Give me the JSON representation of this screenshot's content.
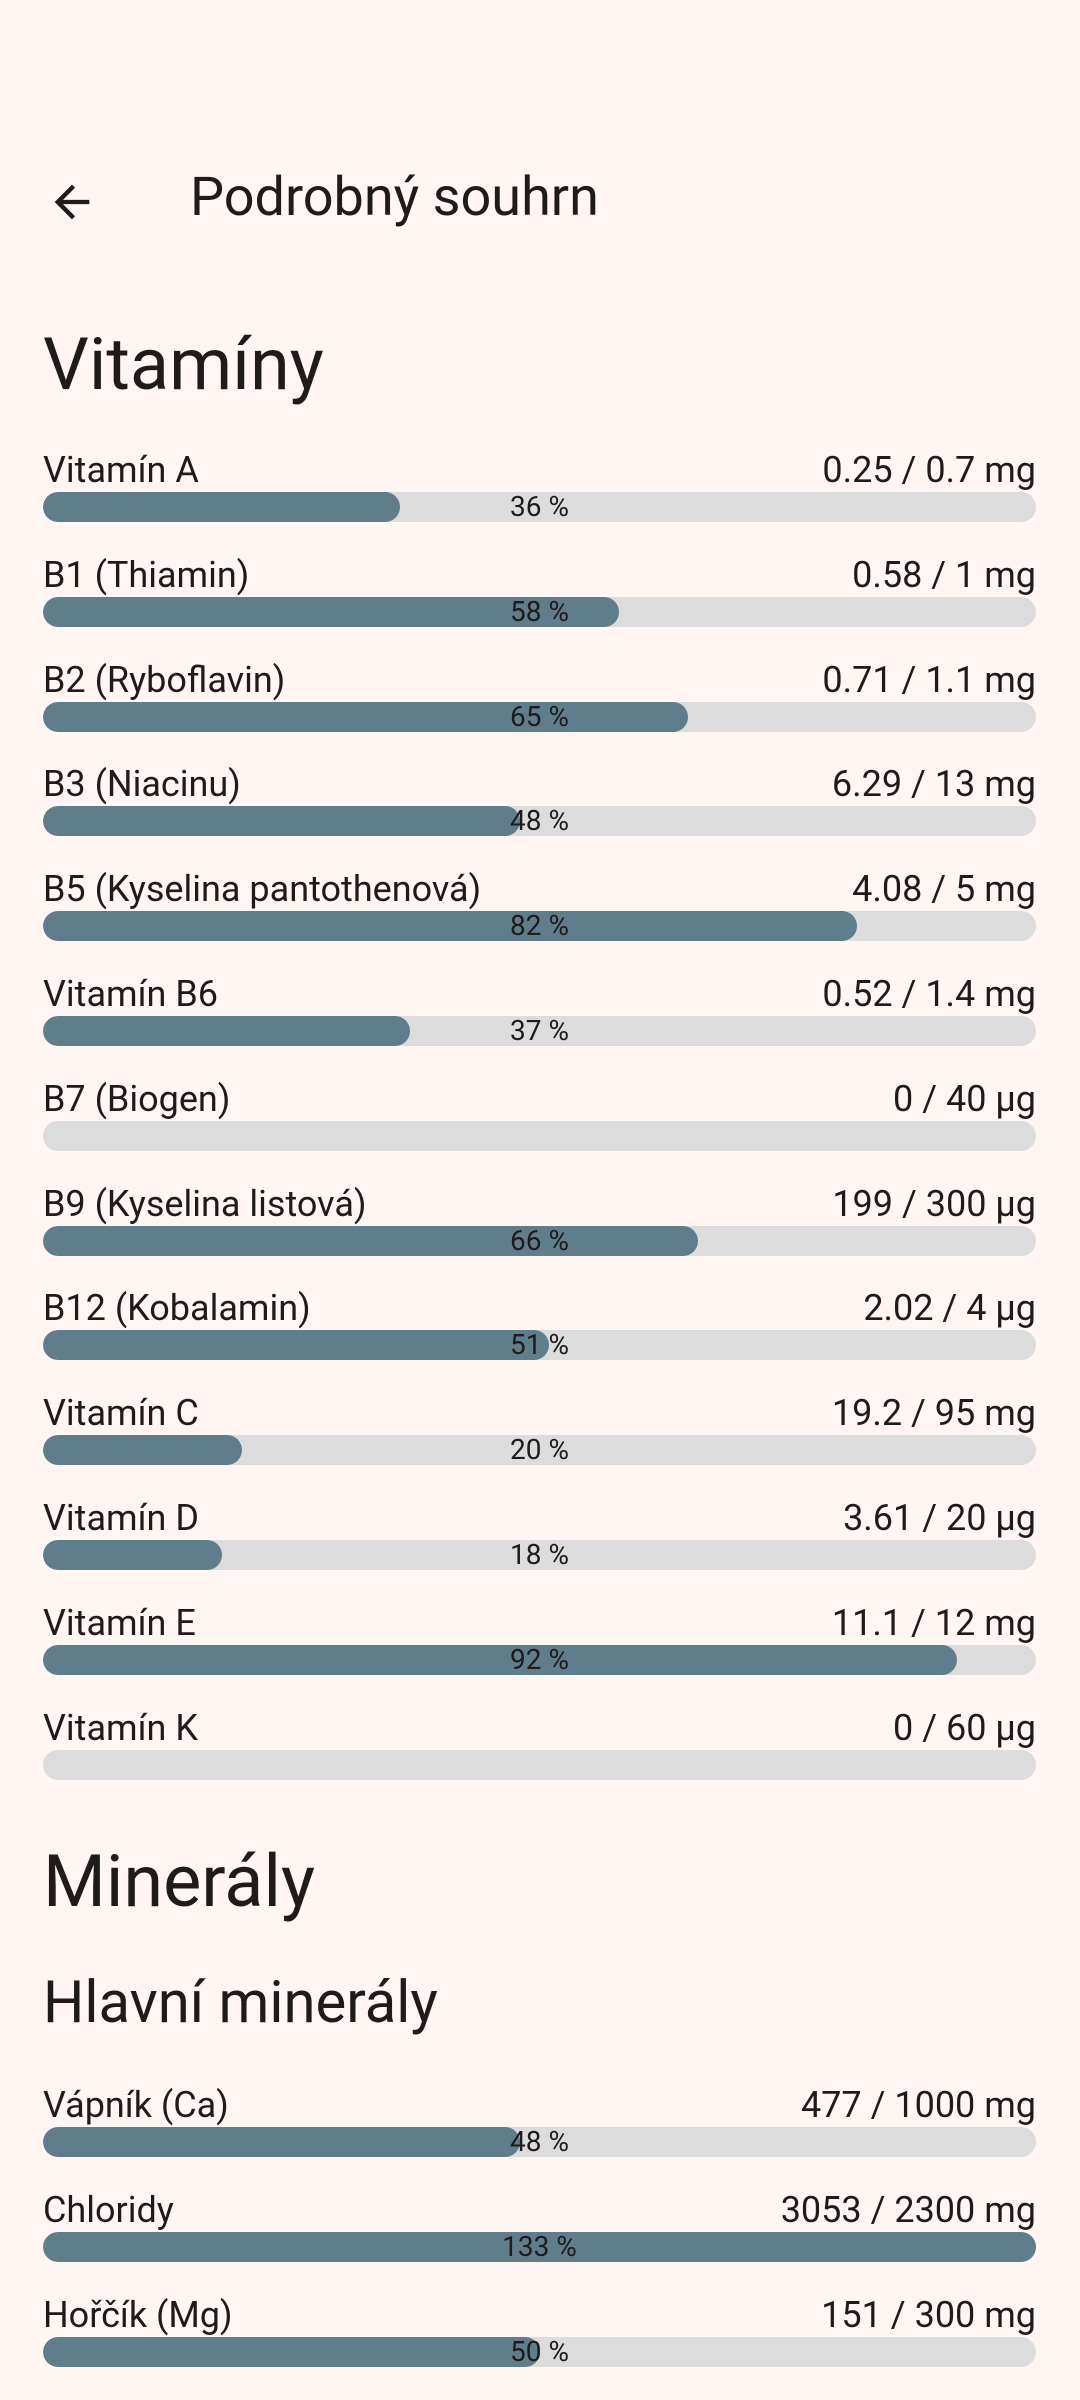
{
  "header": {
    "title": "Podrobný souhrn"
  },
  "vitamins": {
    "title": "Vitamíny",
    "items": [
      {
        "name": "Vitamín A",
        "amount": "0.25 / 0.7 mg",
        "percent": {
          "value": 36,
          "label": "36 %"
        }
      },
      {
        "name": "B1 (Thiamin)",
        "amount": "0.58 / 1 mg",
        "percent": {
          "value": 58,
          "label": "58 %"
        }
      },
      {
        "name": "B2 (Ryboflavin)",
        "amount": "0.71 / 1.1 mg",
        "percent": {
          "value": 65,
          "label": "65 %"
        }
      },
      {
        "name": "B3 (Niacinu)",
        "amount": "6.29 / 13 mg",
        "percent": {
          "value": 48,
          "label": "48 %"
        }
      },
      {
        "name": "B5 (Kyselina pantothenová)",
        "amount": "4.08 / 5 mg",
        "percent": {
          "value": 82,
          "label": "82 %"
        }
      },
      {
        "name": "Vitamín B6",
        "amount": "0.52 / 1.4 mg",
        "percent": {
          "value": 37,
          "label": "37 %"
        }
      },
      {
        "name": "B7 (Biogen)",
        "amount": "0 / 40 µg",
        "percent": 0
      },
      {
        "name": "B9 (Kyselina listová)",
        "amount": "199 / 300 µg",
        "percent": {
          "value": 66,
          "label": "66 %"
        }
      },
      {
        "name": "B12 (Kobalamin)",
        "amount": "2.02 / 4 µg",
        "percent": {
          "value": 51,
          "label": "51 %"
        }
      },
      {
        "name": "Vitamín C",
        "amount": "19.2 / 95 mg",
        "percent": {
          "value": 20,
          "label": "20 %"
        }
      },
      {
        "name": "Vitamín D",
        "amount": "3.61 / 20 µg",
        "percent": {
          "value": 18,
          "label": "18 %"
        }
      },
      {
        "name": "Vitamín E",
        "amount": "11.1 / 12 mg",
        "percent": {
          "value": 92,
          "label": "92 %"
        }
      },
      {
        "name": "Vitamín K",
        "amount": "0 / 60 µg",
        "percent": 0
      }
    ]
  },
  "minerals": {
    "title": "Minerály",
    "subtitle": "Hlavní minerály",
    "items": [
      {
        "name": "Vápník (Ca)",
        "amount": "477 / 1000 mg",
        "percent": {
          "value": 48,
          "label": "48 %"
        }
      },
      {
        "name": "Chloridy",
        "amount": "3053 / 2300 mg",
        "percent": {
          "value": 133,
          "label": "133 %"
        }
      },
      {
        "name": "Hořčík (Mg)",
        "amount": "151 / 300 mg",
        "percent": {
          "value": 50,
          "label": "50 %"
        }
      }
    ]
  }
}
